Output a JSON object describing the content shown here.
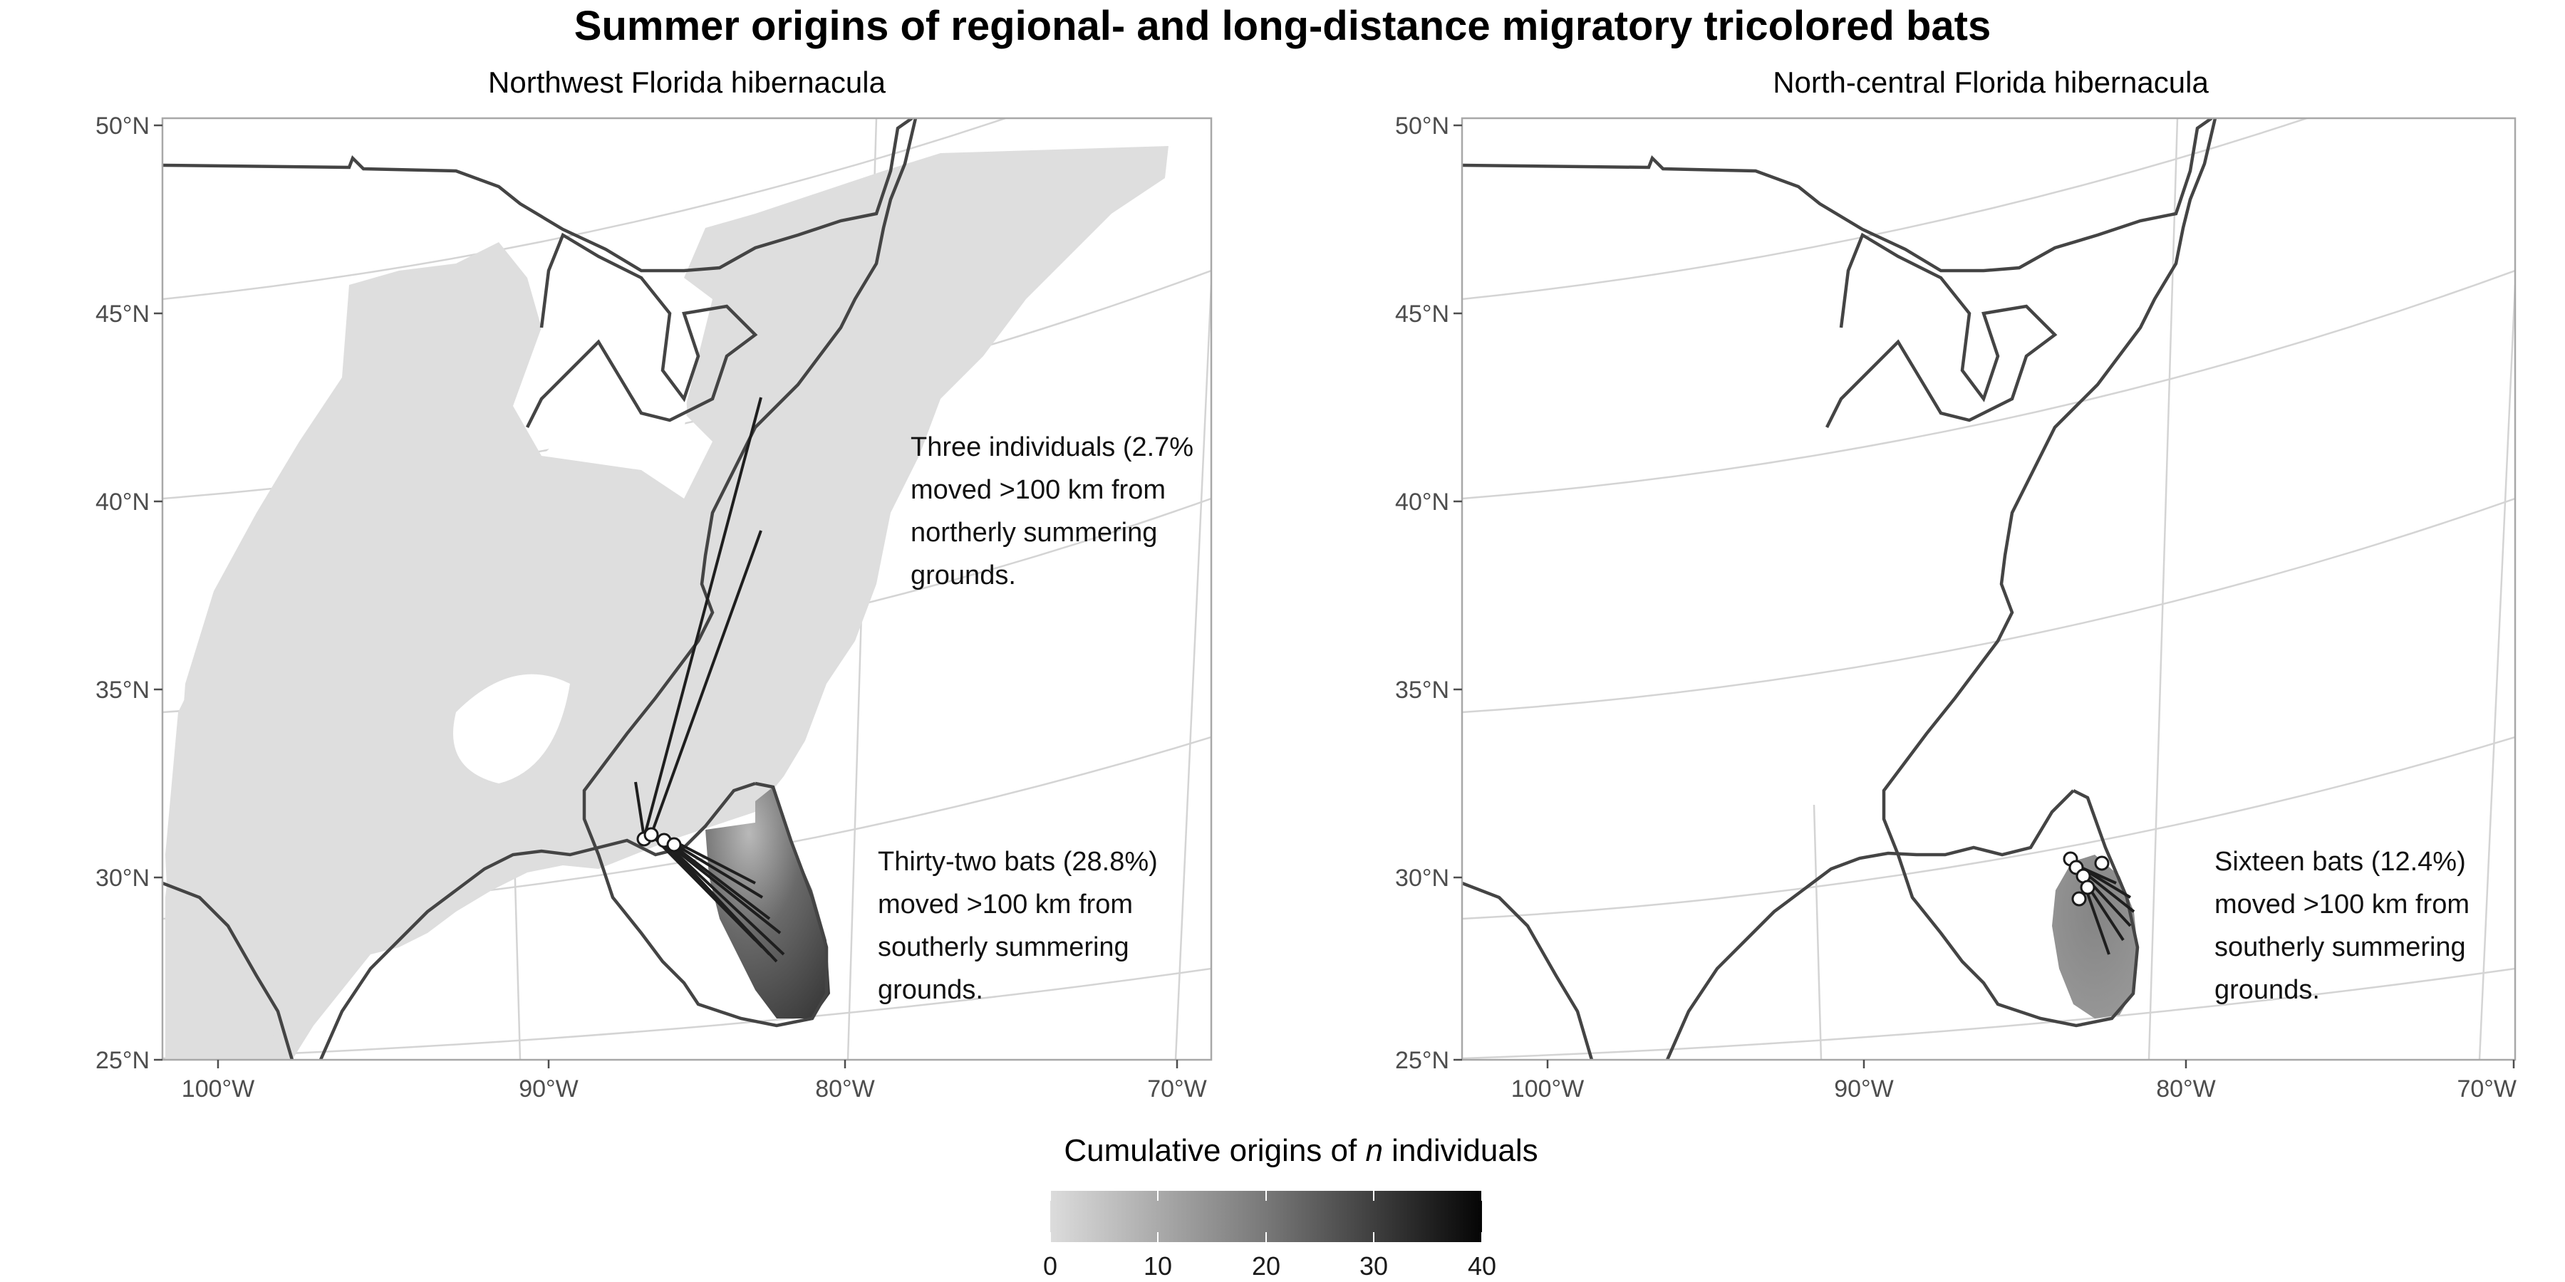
{
  "figure": {
    "title": "Summer origins of regional- and long-distance migratory tricolored bats"
  },
  "panels": [
    {
      "id": "northwest",
      "subtitle": "Northwest Florida hibernacula",
      "lat_ticks": [
        "50°N",
        "45°N",
        "40°N",
        "35°N",
        "30°N",
        "25°N"
      ],
      "lon_ticks": [
        "100°W",
        "90°W",
        "80°W",
        "70°W"
      ],
      "annotations": [
        {
          "lines": [
            "Three individuals (2.7%",
            "moved >100 km from",
            "northerly summering",
            "grounds."
          ]
        },
        {
          "lines": [
            "Thirty-two bats (28.8%)",
            "moved >100 km from",
            "southerly summering",
            "grounds."
          ]
        }
      ]
    },
    {
      "id": "north-central",
      "subtitle": "North-central Florida hibernacula",
      "lat_ticks": [
        "50°N",
        "45°N",
        "40°N",
        "35°N",
        "30°N",
        "25°N"
      ],
      "lon_ticks": [
        "100°W",
        "90°W",
        "80°W",
        "70°W"
      ],
      "annotations": [
        {
          "lines": [
            "Sixteen bats (12.4%)",
            "moved >100 km from",
            "southerly summering",
            "grounds."
          ]
        }
      ]
    }
  ],
  "legend": {
    "title_prefix": "Cumulative origins of ",
    "title_var": "n",
    "title_suffix": " individuals",
    "ticks": [
      "0",
      "10",
      "20",
      "30",
      "40"
    ],
    "range": [
      0,
      40
    ],
    "colors": [
      "#d9d9d9",
      "#000000"
    ]
  },
  "colors": {
    "coast": "#444444",
    "grid": "#d4d4d4",
    "frame": "#a8a8a8",
    "background_range": "#dedede",
    "track": "#1e1e1e"
  }
}
